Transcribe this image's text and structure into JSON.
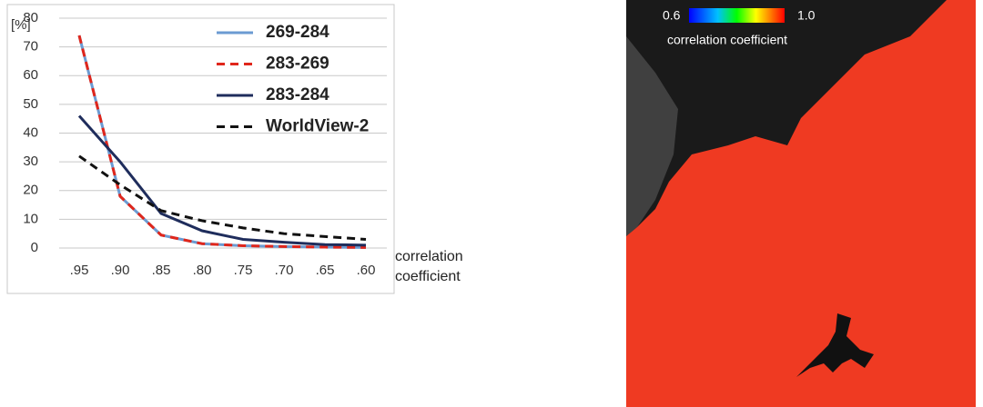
{
  "chart_data": {
    "type": "line",
    "y_unit_label": "[%]",
    "x_label": "correlation coefficient",
    "categories": [
      ".95",
      ".90",
      ".85",
      ".80",
      ".75",
      ".70",
      ".65",
      ".60"
    ],
    "series": [
      {
        "name": "269-284",
        "color": "#6b9bd2",
        "dashed": false,
        "values": [
          74,
          18,
          4.5,
          1.5,
          0.8,
          0.5,
          0.3,
          0.2
        ]
      },
      {
        "name": "283-269",
        "color": "#e0261b",
        "dashed": true,
        "values": [
          74,
          18,
          4.5,
          1.5,
          0.8,
          0.5,
          0.3,
          0.2
        ]
      },
      {
        "name": "283-284",
        "color": "#1f2d5c",
        "dashed": false,
        "values": [
          46,
          30,
          12,
          6,
          3,
          2,
          1.2,
          1
        ]
      },
      {
        "name": "WorldView-2",
        "color": "#111111",
        "dashed": true,
        "values": [
          32,
          22,
          13,
          9.5,
          7,
          5,
          4,
          3
        ]
      }
    ],
    "ylim": [
      0,
      80
    ],
    "yticks": [
      0,
      10,
      20,
      30,
      40,
      50,
      60,
      70,
      80
    ],
    "grid": true,
    "legend": "upper right"
  },
  "image": {
    "colorbar_min": "0.6",
    "colorbar_max": "1.0",
    "colorbar_label": "correlation coefficient"
  }
}
